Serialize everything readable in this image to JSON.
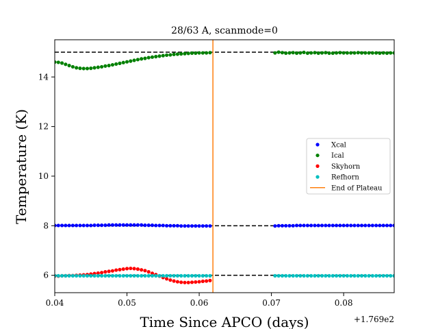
{
  "chart_data": {
    "type": "scatter",
    "title": "28/63 A, scanmode=0",
    "xlabel": "Time Since APCO (days)",
    "ylabel": "Temperature (K)",
    "x_offset_label": "+1.769e2",
    "xlim": [
      0.04,
      0.087
    ],
    "ylim": [
      5.3,
      15.5
    ],
    "x_ticks": [
      0.04,
      0.05,
      0.06,
      0.07,
      0.08
    ],
    "x_tick_labels": [
      "0.04",
      "0.05",
      "0.06",
      "0.07",
      "0.08"
    ],
    "y_ticks": [
      6,
      8,
      10,
      12,
      14
    ],
    "y_tick_labels": [
      "6",
      "8",
      "10",
      "12",
      "14"
    ],
    "grid": false,
    "legend_position": "center-right",
    "legend": [
      {
        "label": "Xcal",
        "color": "#0000ff",
        "marker": "dot"
      },
      {
        "label": "Ical",
        "color": "#008000",
        "marker": "dot"
      },
      {
        "label": "Skyhorn",
        "color": "#ff0000",
        "marker": "dot"
      },
      {
        "label": "Refhorn",
        "color": "#00bfbf",
        "marker": "dot"
      },
      {
        "label": "End of Plateau",
        "color": "#ff7f0e",
        "marker": "line"
      }
    ],
    "reference_lines": [
      {
        "y": 15.0,
        "style": "dashed",
        "color": "#000000"
      },
      {
        "y": 8.0,
        "style": "dashed",
        "color": "#000000"
      },
      {
        "y": 6.0,
        "style": "dashed",
        "color": "#000000"
      }
    ],
    "vertical_lines": [
      {
        "x": 0.0619,
        "color": "#ff7f0e",
        "name": "End of Plateau"
      }
    ],
    "series": [
      {
        "name": "Xcal",
        "color": "#0000ff",
        "points": [
          [
            0.04,
            8.01
          ],
          [
            0.0405,
            8.01
          ],
          [
            0.041,
            8.01
          ],
          [
            0.0415,
            8.01
          ],
          [
            0.042,
            8.01
          ],
          [
            0.0425,
            8.01
          ],
          [
            0.043,
            8.01
          ],
          [
            0.0435,
            8.01
          ],
          [
            0.044,
            8.01
          ],
          [
            0.0445,
            8.01
          ],
          [
            0.045,
            8.01
          ],
          [
            0.0455,
            8.02
          ],
          [
            0.046,
            8.02
          ],
          [
            0.0465,
            8.02
          ],
          [
            0.047,
            8.02
          ],
          [
            0.0475,
            8.03
          ],
          [
            0.048,
            8.03
          ],
          [
            0.0485,
            8.03
          ],
          [
            0.049,
            8.03
          ],
          [
            0.0495,
            8.03
          ],
          [
            0.05,
            8.03
          ],
          [
            0.0505,
            8.03
          ],
          [
            0.051,
            8.03
          ],
          [
            0.0515,
            8.03
          ],
          [
            0.052,
            8.03
          ],
          [
            0.0525,
            8.02
          ],
          [
            0.053,
            8.02
          ],
          [
            0.0535,
            8.02
          ],
          [
            0.054,
            8.01
          ],
          [
            0.0545,
            8.01
          ],
          [
            0.055,
            8.01
          ],
          [
            0.0555,
            8.0
          ],
          [
            0.056,
            8.0
          ],
          [
            0.0565,
            8.0
          ],
          [
            0.057,
            8.0
          ],
          [
            0.0575,
            7.99
          ],
          [
            0.058,
            7.99
          ],
          [
            0.0585,
            7.99
          ],
          [
            0.059,
            7.99
          ],
          [
            0.0595,
            7.99
          ],
          [
            0.06,
            7.99
          ],
          [
            0.0605,
            7.99
          ],
          [
            0.061,
            7.99
          ],
          [
            0.0615,
            7.99
          ],
          [
            0.0705,
            7.99
          ],
          [
            0.071,
            8.0
          ],
          [
            0.0715,
            8.0
          ],
          [
            0.072,
            8.0
          ],
          [
            0.0725,
            8.0
          ],
          [
            0.073,
            8.0
          ],
          [
            0.0735,
            8.01
          ],
          [
            0.074,
            8.01
          ],
          [
            0.0745,
            8.01
          ],
          [
            0.075,
            8.01
          ],
          [
            0.0755,
            8.01
          ],
          [
            0.076,
            8.01
          ],
          [
            0.0765,
            8.01
          ],
          [
            0.077,
            8.01
          ],
          [
            0.0775,
            8.01
          ],
          [
            0.078,
            8.01
          ],
          [
            0.0785,
            8.01
          ],
          [
            0.079,
            8.01
          ],
          [
            0.0795,
            8.01
          ],
          [
            0.08,
            8.01
          ],
          [
            0.0805,
            8.01
          ],
          [
            0.081,
            8.01
          ],
          [
            0.0815,
            8.01
          ],
          [
            0.082,
            8.01
          ],
          [
            0.0825,
            8.01
          ],
          [
            0.083,
            8.01
          ],
          [
            0.0835,
            8.01
          ],
          [
            0.084,
            8.01
          ],
          [
            0.0845,
            8.01
          ],
          [
            0.085,
            8.01
          ],
          [
            0.0855,
            8.01
          ],
          [
            0.086,
            8.01
          ],
          [
            0.0865,
            8.01
          ],
          [
            0.087,
            8.01
          ]
        ]
      },
      {
        "name": "Ical",
        "color": "#008000",
        "points": [
          [
            0.04,
            14.6
          ],
          [
            0.0405,
            14.59
          ],
          [
            0.041,
            14.56
          ],
          [
            0.0415,
            14.51
          ],
          [
            0.042,
            14.46
          ],
          [
            0.0425,
            14.41
          ],
          [
            0.043,
            14.37
          ],
          [
            0.0435,
            14.35
          ],
          [
            0.044,
            14.34
          ],
          [
            0.0445,
            14.34
          ],
          [
            0.045,
            14.35
          ],
          [
            0.0455,
            14.37
          ],
          [
            0.046,
            14.39
          ],
          [
            0.0465,
            14.41
          ],
          [
            0.047,
            14.44
          ],
          [
            0.0475,
            14.46
          ],
          [
            0.048,
            14.49
          ],
          [
            0.0485,
            14.52
          ],
          [
            0.049,
            14.55
          ],
          [
            0.0495,
            14.58
          ],
          [
            0.05,
            14.61
          ],
          [
            0.0505,
            14.64
          ],
          [
            0.051,
            14.67
          ],
          [
            0.0515,
            14.7
          ],
          [
            0.052,
            14.73
          ],
          [
            0.0525,
            14.75
          ],
          [
            0.053,
            14.78
          ],
          [
            0.0535,
            14.8
          ],
          [
            0.054,
            14.82
          ],
          [
            0.0545,
            14.84
          ],
          [
            0.055,
            14.86
          ],
          [
            0.0555,
            14.88
          ],
          [
            0.056,
            14.89
          ],
          [
            0.0565,
            14.91
          ],
          [
            0.057,
            14.92
          ],
          [
            0.0575,
            14.93
          ],
          [
            0.058,
            14.94
          ],
          [
            0.0585,
            14.95
          ],
          [
            0.059,
            14.96
          ],
          [
            0.0595,
            14.96
          ],
          [
            0.06,
            14.97
          ],
          [
            0.0605,
            14.97
          ],
          [
            0.061,
            14.97
          ],
          [
            0.0615,
            14.98
          ],
          [
            0.0705,
            14.97
          ],
          [
            0.071,
            15.0
          ],
          [
            0.0715,
            14.98
          ],
          [
            0.072,
            14.96
          ],
          [
            0.0725,
            14.97
          ],
          [
            0.073,
            14.98
          ],
          [
            0.0735,
            14.96
          ],
          [
            0.074,
            14.97
          ],
          [
            0.0745,
            14.99
          ],
          [
            0.075,
            14.96
          ],
          [
            0.0755,
            14.97
          ],
          [
            0.076,
            14.98
          ],
          [
            0.0765,
            14.96
          ],
          [
            0.077,
            14.97
          ],
          [
            0.0775,
            14.98
          ],
          [
            0.078,
            14.96
          ],
          [
            0.0785,
            14.96
          ],
          [
            0.079,
            14.97
          ],
          [
            0.0795,
            14.98
          ],
          [
            0.08,
            14.97
          ],
          [
            0.0805,
            14.97
          ],
          [
            0.081,
            14.97
          ],
          [
            0.0815,
            14.97
          ],
          [
            0.082,
            14.98
          ],
          [
            0.0825,
            14.97
          ],
          [
            0.083,
            14.97
          ],
          [
            0.0835,
            14.97
          ],
          [
            0.084,
            14.97
          ],
          [
            0.0845,
            14.97
          ],
          [
            0.085,
            14.96
          ],
          [
            0.0855,
            14.97
          ],
          [
            0.086,
            14.96
          ],
          [
            0.0865,
            14.97
          ],
          [
            0.087,
            14.97
          ]
        ]
      },
      {
        "name": "Skyhorn",
        "color": "#ff0000",
        "points": [
          [
            0.04,
            5.97
          ],
          [
            0.0405,
            5.97
          ],
          [
            0.041,
            5.98
          ],
          [
            0.0415,
            5.98
          ],
          [
            0.042,
            5.99
          ],
          [
            0.0425,
            5.99
          ],
          [
            0.043,
            6.0
          ],
          [
            0.0435,
            6.01
          ],
          [
            0.044,
            6.02
          ],
          [
            0.0445,
            6.03
          ],
          [
            0.045,
            6.05
          ],
          [
            0.0455,
            6.07
          ],
          [
            0.046,
            6.09
          ],
          [
            0.0465,
            6.11
          ],
          [
            0.047,
            6.14
          ],
          [
            0.0475,
            6.16
          ],
          [
            0.048,
            6.18
          ],
          [
            0.0485,
            6.21
          ],
          [
            0.049,
            6.23
          ],
          [
            0.0495,
            6.25
          ],
          [
            0.05,
            6.27
          ],
          [
            0.0505,
            6.28
          ],
          [
            0.051,
            6.27
          ],
          [
            0.0515,
            6.25
          ],
          [
            0.052,
            6.22
          ],
          [
            0.0525,
            6.19
          ],
          [
            0.053,
            6.14
          ],
          [
            0.0535,
            6.08
          ],
          [
            0.054,
            6.03
          ],
          [
            0.0545,
            5.97
          ],
          [
            0.055,
            5.91
          ],
          [
            0.0555,
            5.86
          ],
          [
            0.056,
            5.81
          ],
          [
            0.0565,
            5.77
          ],
          [
            0.057,
            5.74
          ],
          [
            0.0575,
            5.72
          ],
          [
            0.058,
            5.71
          ],
          [
            0.0585,
            5.71
          ],
          [
            0.059,
            5.72
          ],
          [
            0.0595,
            5.73
          ],
          [
            0.06,
            5.74
          ],
          [
            0.0605,
            5.76
          ],
          [
            0.061,
            5.77
          ],
          [
            0.0615,
            5.79
          ]
        ]
      },
      {
        "name": "Refhorn",
        "color": "#00bfbf",
        "points": [
          [
            0.04,
            5.98
          ],
          [
            0.0405,
            5.98
          ],
          [
            0.041,
            5.98
          ],
          [
            0.0415,
            5.98
          ],
          [
            0.042,
            5.98
          ],
          [
            0.0425,
            5.98
          ],
          [
            0.043,
            5.98
          ],
          [
            0.0435,
            5.98
          ],
          [
            0.044,
            5.98
          ],
          [
            0.0445,
            5.98
          ],
          [
            0.045,
            5.98
          ],
          [
            0.0455,
            5.98
          ],
          [
            0.046,
            5.98
          ],
          [
            0.0465,
            5.98
          ],
          [
            0.047,
            5.98
          ],
          [
            0.0475,
            5.98
          ],
          [
            0.048,
            5.98
          ],
          [
            0.0485,
            5.98
          ],
          [
            0.049,
            5.98
          ],
          [
            0.0495,
            5.98
          ],
          [
            0.05,
            5.98
          ],
          [
            0.0505,
            5.98
          ],
          [
            0.051,
            5.98
          ],
          [
            0.0515,
            5.98
          ],
          [
            0.052,
            5.98
          ],
          [
            0.0525,
            5.98
          ],
          [
            0.053,
            5.98
          ],
          [
            0.0535,
            5.98
          ],
          [
            0.054,
            5.98
          ],
          [
            0.0545,
            5.98
          ],
          [
            0.055,
            5.98
          ],
          [
            0.0555,
            5.98
          ],
          [
            0.056,
            5.98
          ],
          [
            0.0565,
            5.98
          ],
          [
            0.057,
            5.98
          ],
          [
            0.0575,
            5.98
          ],
          [
            0.058,
            5.98
          ],
          [
            0.0585,
            5.98
          ],
          [
            0.059,
            5.98
          ],
          [
            0.0595,
            5.98
          ],
          [
            0.06,
            5.98
          ],
          [
            0.0605,
            5.98
          ],
          [
            0.061,
            5.98
          ],
          [
            0.0615,
            5.98
          ],
          [
            0.0705,
            5.98
          ],
          [
            0.071,
            5.98
          ],
          [
            0.0715,
            5.98
          ],
          [
            0.072,
            5.98
          ],
          [
            0.0725,
            5.98
          ],
          [
            0.073,
            5.98
          ],
          [
            0.0735,
            5.98
          ],
          [
            0.074,
            5.98
          ],
          [
            0.0745,
            5.98
          ],
          [
            0.075,
            5.98
          ],
          [
            0.0755,
            5.98
          ],
          [
            0.076,
            5.98
          ],
          [
            0.0765,
            5.98
          ],
          [
            0.077,
            5.98
          ],
          [
            0.0775,
            5.98
          ],
          [
            0.078,
            5.98
          ],
          [
            0.0785,
            5.98
          ],
          [
            0.079,
            5.98
          ],
          [
            0.0795,
            5.98
          ],
          [
            0.08,
            5.98
          ],
          [
            0.0805,
            5.98
          ],
          [
            0.081,
            5.98
          ],
          [
            0.0815,
            5.98
          ],
          [
            0.082,
            5.98
          ],
          [
            0.0825,
            5.98
          ],
          [
            0.083,
            5.98
          ],
          [
            0.0835,
            5.98
          ],
          [
            0.084,
            5.98
          ],
          [
            0.0845,
            5.98
          ],
          [
            0.085,
            5.98
          ],
          [
            0.0855,
            5.98
          ],
          [
            0.086,
            5.98
          ],
          [
            0.0865,
            5.98
          ],
          [
            0.087,
            5.98
          ]
        ]
      }
    ]
  }
}
